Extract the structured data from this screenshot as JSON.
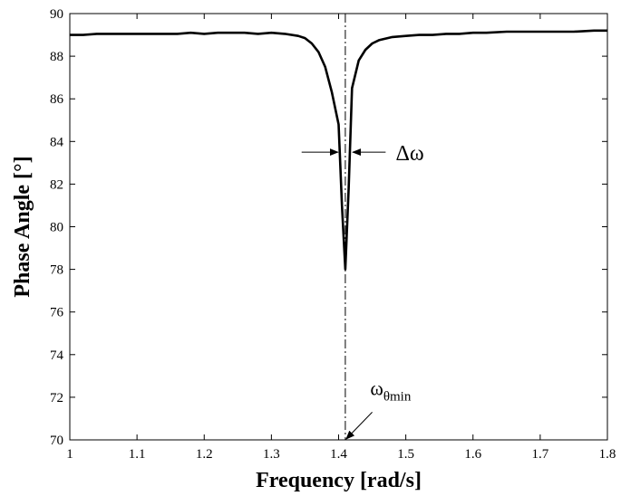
{
  "chart_data": {
    "type": "line",
    "title": "",
    "xlabel": "Frequency [rad/s]",
    "ylabel": "Phase Angle [°]",
    "xlim": [
      1,
      1.8
    ],
    "ylim": [
      70,
      90
    ],
    "xticks": [
      "1",
      "1.1",
      "1.2",
      "1.3",
      "1.4",
      "1.5",
      "1.6",
      "1.7",
      "1.8"
    ],
    "yticks": [
      "70",
      "72",
      "74",
      "76",
      "78",
      "80",
      "82",
      "84",
      "86",
      "88",
      "90"
    ],
    "grid": false,
    "legend": "none",
    "line_color": "#000000",
    "series": [
      {
        "x": [
          1.0,
          1.02,
          1.04,
          1.06,
          1.08,
          1.1,
          1.12,
          1.14,
          1.16,
          1.18,
          1.2,
          1.22,
          1.24,
          1.26,
          1.28,
          1.3,
          1.32,
          1.34,
          1.35,
          1.36,
          1.37,
          1.38,
          1.39,
          1.4,
          1.405,
          1.41,
          1.415,
          1.42,
          1.43,
          1.44,
          1.45,
          1.46,
          1.48,
          1.5,
          1.52,
          1.54,
          1.56,
          1.58,
          1.6,
          1.62,
          1.65,
          1.7,
          1.75,
          1.78,
          1.8
        ],
        "y": [
          89.0,
          89.0,
          89.05,
          89.05,
          89.05,
          89.05,
          89.05,
          89.05,
          89.05,
          89.1,
          89.05,
          89.1,
          89.1,
          89.1,
          89.05,
          89.1,
          89.05,
          88.95,
          88.85,
          88.6,
          88.2,
          87.5,
          86.3,
          84.8,
          81.0,
          78.0,
          81.8,
          86.5,
          87.8,
          88.3,
          88.6,
          88.75,
          88.9,
          88.95,
          89.0,
          89.0,
          89.05,
          89.05,
          89.1,
          89.1,
          89.15,
          89.15,
          89.15,
          89.2,
          89.2
        ]
      }
    ],
    "annotations": {
      "center_line_x": 1.41,
      "delta_label": "Δω",
      "omega_symbol": "ω",
      "omega_subscript": "θmin"
    }
  }
}
